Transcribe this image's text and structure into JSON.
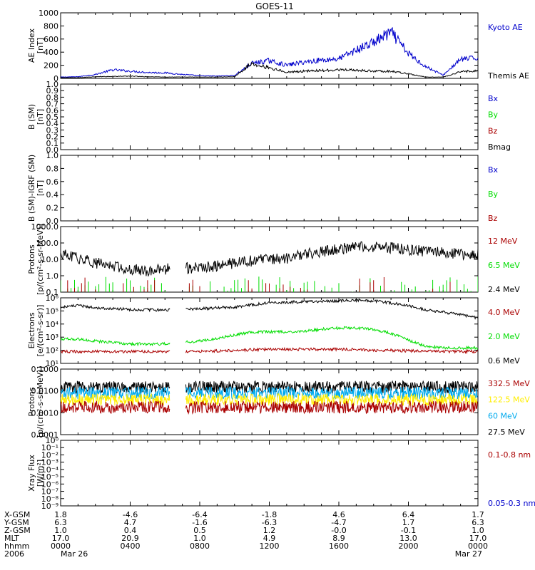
{
  "title": "GOES-11",
  "colors": {
    "black": "#000000",
    "blue": "#0000cc",
    "green": "#00dd00",
    "red": "#aa0000",
    "cyan": "#00aaee",
    "yellow": "#ffee00"
  },
  "chart_data": [
    {
      "type": "line",
      "ylabel": [
        "AE Index",
        "[nT]"
      ],
      "ylim": [
        0,
        1000
      ],
      "yscale": "linear",
      "yticks": [
        "0",
        "200",
        "400",
        "600",
        "800",
        "1000"
      ],
      "legend": [
        {
          "label": "Kyoto AE",
          "color": "#0000cc"
        },
        {
          "label": "Themis AE",
          "color": "#000000"
        }
      ],
      "x_hours": [
        0,
        1,
        2,
        3,
        4,
        5,
        6,
        7,
        8,
        9,
        10,
        11,
        12,
        13,
        14,
        15,
        16,
        17,
        18,
        19,
        20,
        21,
        22,
        23,
        24
      ],
      "series": [
        {
          "name": "Kyoto AE",
          "color": "#0000cc",
          "values": [
            20,
            25,
            60,
            130,
            110,
            90,
            85,
            60,
            40,
            35,
            45,
            230,
            270,
            200,
            250,
            280,
            300,
            430,
            550,
            700,
            380,
            180,
            50,
            290,
            310
          ]
        },
        {
          "name": "Themis AE",
          "color": "#000000",
          "values": [
            10,
            10,
            25,
            30,
            35,
            25,
            20,
            20,
            20,
            20,
            25,
            230,
            160,
            95,
            110,
            120,
            130,
            125,
            110,
            110,
            70,
            20,
            20,
            100,
            120
          ]
        }
      ]
    },
    {
      "type": "line",
      "ylabel": [
        "B (SM)",
        "[nT]"
      ],
      "ylim": [
        0.0,
        1.0
      ],
      "yscale": "linear",
      "yticks": [
        "0.0",
        "0.1",
        "0.2",
        "0.3",
        "0.4",
        "0.5",
        "0.6",
        "0.7",
        "0.8",
        "0.9",
        "1.0"
      ],
      "legend": [
        {
          "label": "Bx",
          "color": "#0000cc"
        },
        {
          "label": "By",
          "color": "#00dd00"
        },
        {
          "label": "Bz",
          "color": "#aa0000"
        },
        {
          "label": "Bmag",
          "color": "#000000"
        }
      ],
      "series": []
    },
    {
      "type": "line",
      "ylabel": [
        "B (SM)-IGRF (SM)",
        "[nT]"
      ],
      "ylim": [
        0.0,
        1.0
      ],
      "yscale": "linear",
      "yticks": [
        "0.0",
        "0.2",
        "0.4",
        "0.6",
        "0.8",
        "1.0"
      ],
      "legend": [
        {
          "label": "Bx",
          "color": "#0000cc"
        },
        {
          "label": "By",
          "color": "#00dd00"
        },
        {
          "label": "Bz",
          "color": "#aa0000"
        }
      ],
      "series": []
    },
    {
      "type": "line",
      "ylabel": [
        "Protons",
        "[p/(cm²-s-sr-MeV)]"
      ],
      "ylim": [
        0.1,
        1000
      ],
      "yscale": "log",
      "yticks": [
        "0.1",
        "1.0",
        "10.0",
        "100.0",
        "1000.0"
      ],
      "legend": [
        {
          "label": "12 MeV",
          "color": "#aa0000"
        },
        {
          "label": "6.5 MeV",
          "color": "#00dd00"
        },
        {
          "label": "2.4 MeV",
          "color": "#000000"
        }
      ],
      "gap_hours": [
        6.3,
        7.2
      ],
      "series": [
        {
          "name": "2.4 MeV",
          "color": "#000000",
          "values_hourly": [
            20,
            12,
            6,
            4,
            2.5,
            2,
            2.5,
            3,
            3,
            4,
            6,
            8,
            10,
            12,
            20,
            30,
            40,
            60,
            60,
            50,
            40,
            30,
            25,
            20,
            20
          ]
        }
      ]
    },
    {
      "type": "line",
      "ylabel": [
        "Electrons",
        "[e/(cm²-s-sr)]"
      ],
      "ylim": [
        10,
        1000000
      ],
      "yscale": "log",
      "yticks": [
        "10¹",
        "10²",
        "10³",
        "10⁴",
        "10⁵",
        "10⁶"
      ],
      "legend": [
        {
          "label": "4.0 MeV",
          "color": "#aa0000"
        },
        {
          "label": "2.0 MeV",
          "color": "#00dd00"
        },
        {
          "label": "0.6 MeV",
          "color": "#000000"
        }
      ],
      "gap_hours": [
        6.3,
        7.2
      ],
      "series": [
        {
          "name": "0.6 MeV",
          "color": "#000000",
          "values_hourly": [
            200000,
            250000,
            180000,
            150000,
            130000,
            120000,
            120000,
            130000,
            150000,
            170000,
            200000,
            300000,
            400000,
            450000,
            500000,
            550000,
            600000,
            650000,
            600000,
            400000,
            250000,
            120000,
            80000,
            50000,
            30000
          ]
        },
        {
          "name": "2.0 MeV",
          "color": "#00dd00",
          "values_hourly": [
            700,
            700,
            500,
            400,
            300,
            300,
            300,
            400,
            500,
            800,
            1500,
            2500,
            2500,
            2500,
            3000,
            4000,
            5000,
            5000,
            4000,
            2000,
            600,
            200,
            150,
            150,
            150
          ]
        },
        {
          "name": "4.0 MeV",
          "color": "#aa0000",
          "values_hourly": [
            80,
            80,
            80,
            80,
            80,
            80,
            80,
            80,
            80,
            90,
            100,
            110,
            120,
            120,
            120,
            120,
            120,
            110,
            100,
            100,
            90,
            90,
            80,
            80,
            80
          ]
        }
      ]
    },
    {
      "type": "line",
      "ylabel": [
        "Protons",
        "[p/(cm²-s-sr-MeV)]"
      ],
      "ylim": [
        0.0001,
        0.1
      ],
      "yscale": "log",
      "yticks": [
        "0.0001",
        "0.0010",
        "0.0100",
        "0.1000"
      ],
      "legend": [
        {
          "label": "332.5 MeV",
          "color": "#aa0000"
        },
        {
          "label": "122.5 MeV",
          "color": "#ffee00"
        },
        {
          "label": "60 MeV",
          "color": "#00aaee"
        },
        {
          "label": "27.5 MeV",
          "color": "#000000"
        }
      ],
      "gap_hours": [
        6.3,
        7.2
      ],
      "series": [
        {
          "name": "27.5 MeV",
          "color": "#000000",
          "level": 0.015
        },
        {
          "name": "60 MeV",
          "color": "#00aaee",
          "level": 0.008
        },
        {
          "name": "122.5 MeV",
          "color": "#ffee00",
          "level": 0.004
        },
        {
          "name": "332.5 MeV",
          "color": "#aa0000",
          "level": 0.0018
        }
      ]
    },
    {
      "type": "line",
      "ylabel": [
        "Xray Flux",
        "[W/m²]"
      ],
      "ylim": [
        1e-09,
        1
      ],
      "yscale": "log",
      "yticks": [
        "10⁻⁹",
        "10⁻⁸",
        "10⁻⁷",
        "10⁻⁶",
        "10⁻⁵",
        "10⁻⁴",
        "10⁻³",
        "10⁻²",
        "10⁻¹",
        "10⁰"
      ],
      "legend": [
        {
          "label": "0.1-0.8 nm",
          "color": "#aa0000"
        },
        {
          "label": "0.05-0.3 nm",
          "color": "#0000cc"
        }
      ],
      "series": []
    }
  ],
  "xaxis": {
    "row_labels": [
      "X-GSM",
      "Y-GSM",
      "Z-GSM",
      "MLT",
      "hhmm",
      "2006"
    ],
    "columns": [
      {
        "values": [
          "1.8",
          "6.3",
          "1.0",
          "17.0",
          "0000",
          "Mar 26"
        ]
      },
      {
        "values": [
          "-4.6",
          "4.7",
          "0.4",
          "20.9",
          "0400",
          ""
        ]
      },
      {
        "values": [
          "-6.4",
          "-1.6",
          "0.5",
          "1.0",
          "0800",
          ""
        ]
      },
      {
        "values": [
          "-1.8",
          "-6.3",
          "1.2",
          "4.9",
          "1200",
          ""
        ]
      },
      {
        "values": [
          "4.6",
          "-4.7",
          "-0.0",
          "8.9",
          "1600",
          ""
        ]
      },
      {
        "values": [
          "6.4",
          "1.7",
          "-0.1",
          "13.0",
          "2000",
          ""
        ]
      },
      {
        "values": [
          "1.7",
          "6.3",
          "1.0",
          "17.0",
          "0000",
          "Mar 27"
        ]
      }
    ]
  }
}
